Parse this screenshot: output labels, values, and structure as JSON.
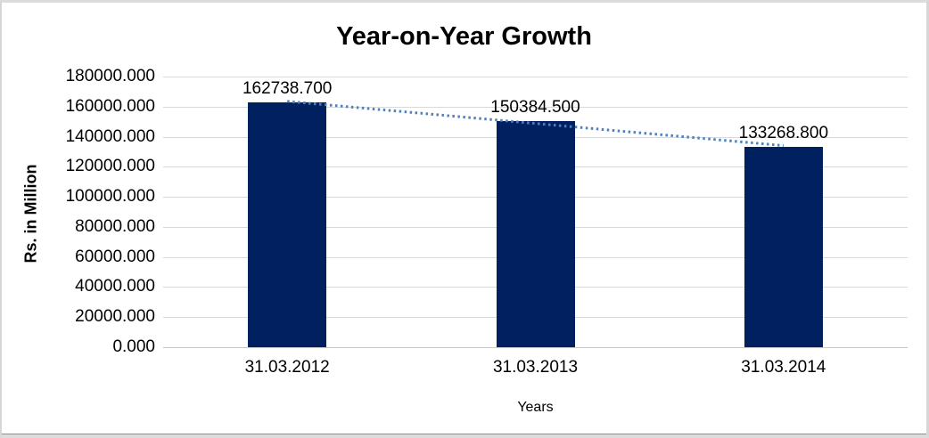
{
  "chart_data": {
    "type": "bar",
    "title": "Year-on-Year Growth",
    "categories": [
      "31.03.2012",
      "31.03.2013",
      "31.03.2014"
    ],
    "values": [
      162738.7,
      150384.5,
      133268.8
    ],
    "data_labels": [
      "162738.700",
      "150384.500",
      "133268.800"
    ],
    "xlabel": "Years",
    "ylabel": "Rs. in Million",
    "ylim": [
      0,
      180000
    ],
    "ytick_step": 20000,
    "ytick_labels": [
      "0.000",
      "20000.000",
      "40000.000",
      "60000.000",
      "80000.000",
      "100000.000",
      "120000.000",
      "140000.000",
      "160000.000",
      "180000.000"
    ],
    "grid": "horizontal",
    "legend": "none",
    "bar_color": "#002060",
    "gridline_color": "#d9d9d9",
    "trendline": {
      "type": "linear",
      "style": "dotted",
      "color": "#4f81bd"
    }
  }
}
